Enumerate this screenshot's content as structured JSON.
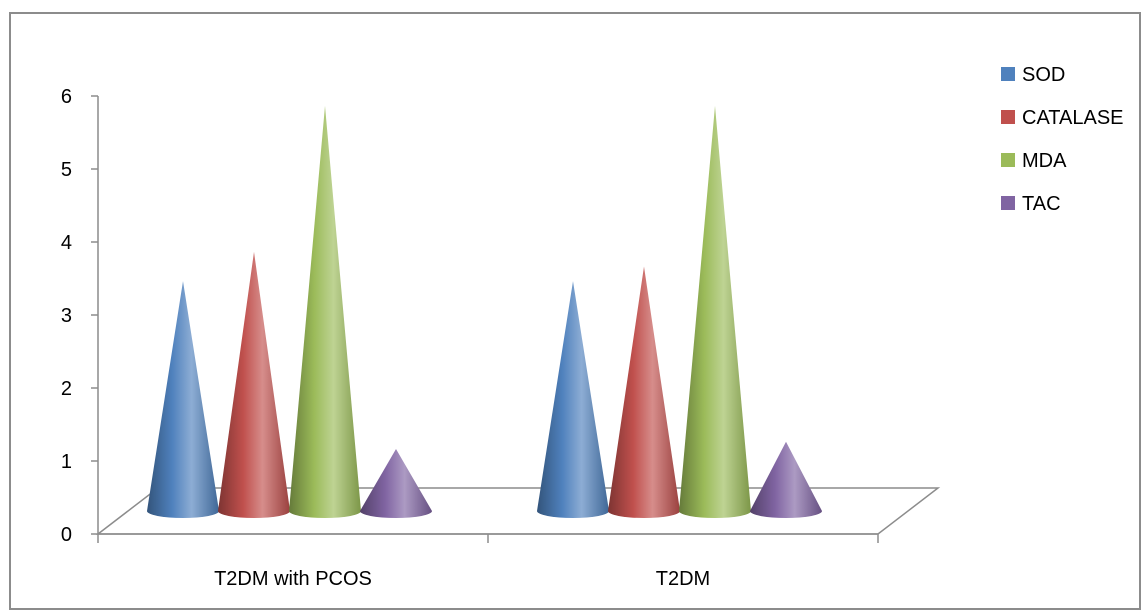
{
  "chart_data": {
    "type": "bar",
    "style": "3d-cone",
    "title": "",
    "xlabel": "",
    "ylabel": "",
    "ylim": [
      0,
      6
    ],
    "yticks": [
      "0",
      "1",
      "2",
      "3",
      "4",
      "5",
      "6"
    ],
    "categories": [
      "T2DM with PCOS",
      "T2DM"
    ],
    "series": [
      {
        "name": "SOD",
        "color": "#4f81bd",
        "values": [
          3.3,
          3.3
        ]
      },
      {
        "name": "CATALASE",
        "color": "#c0504d",
        "values": [
          3.7,
          3.5
        ]
      },
      {
        "name": "MDA",
        "color": "#9bbb59",
        "values": [
          5.7,
          5.7
        ]
      },
      {
        "name": "TAC",
        "color": "#8064a2",
        "values": [
          1.0,
          1.1
        ]
      }
    ],
    "legend": {
      "position": "right"
    },
    "grid": false
  }
}
